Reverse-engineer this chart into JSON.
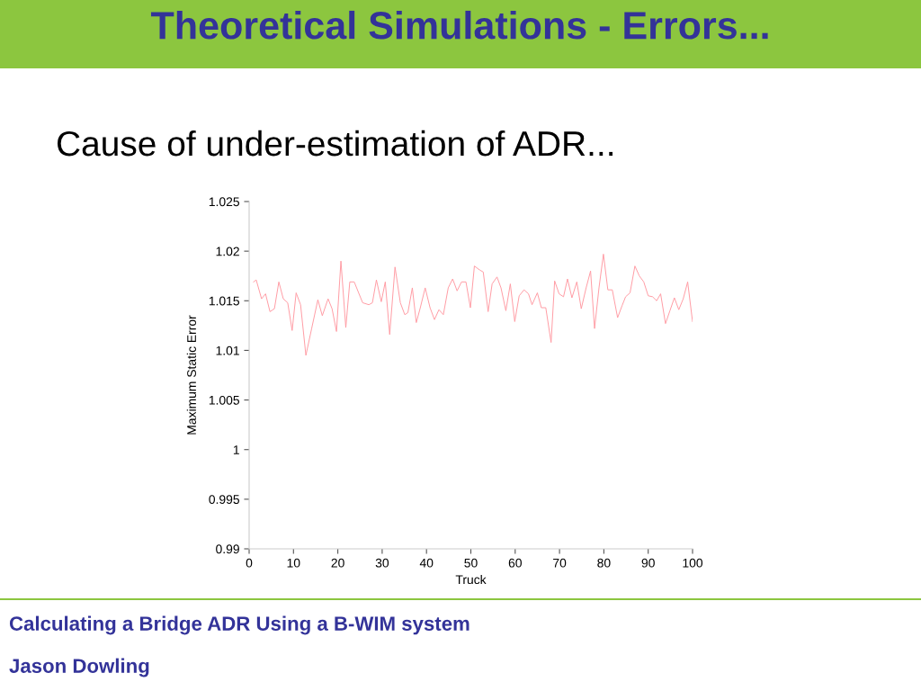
{
  "chart_data": {
    "type": "line",
    "title": "Theoretical Simulations - Errors...",
    "subtitle": "Cause of under-estimation of ADR...",
    "xlabel": "Truck",
    "ylabel": "Maximum Static Error",
    "annotations": [
      "Calculating a Bridge ADR Using a B-WIM system",
      "Jason Dowling"
    ],
    "series": [
      {
        "color": "#ff9aa2",
        "x": [
          1,
          1.6,
          2.8,
          3.7,
          4.7,
          5.7,
          6.7,
          7.7,
          8.7,
          9.7,
          10.6,
          11.6,
          12.8,
          14.1,
          15.5,
          16.5,
          17.8,
          18.7,
          19.7,
          20.7,
          21.8,
          22.7,
          23.7,
          25.6,
          27,
          27.8,
          28.7,
          29.8,
          30.7,
          31.7,
          32.9,
          34.1,
          35.1,
          35.8,
          36.8,
          37.7,
          38.6,
          39.7,
          40.8,
          41.8,
          42.8,
          43.8,
          44.9,
          45.9,
          46.9,
          47.9,
          48.9,
          49.9,
          50.8,
          52,
          52.8,
          53.9,
          54.8,
          55.9,
          56.8,
          57.9,
          58.9,
          59.9,
          60.9,
          62,
          63,
          63.8,
          65,
          65.9,
          66.9,
          68.1,
          68.9,
          69.9,
          70.9,
          71.8,
          72.8,
          73.9,
          74.9,
          76,
          77,
          77.9,
          78.9,
          79.9,
          80.9,
          81.9,
          83.1,
          84.1,
          84.9,
          85.9,
          87,
          88,
          89,
          90,
          91,
          91.9,
          92.8,
          93.9,
          94.9,
          95.9,
          96.9,
          97.9,
          98.9,
          100
        ],
        "values": [
          1.0169,
          1.0171,
          1.0152,
          1.0157,
          1.0139,
          1.0142,
          1.0169,
          1.0152,
          1.0148,
          1.012,
          1.0158,
          1.0146,
          1.0095,
          1.0122,
          1.0151,
          1.0135,
          1.0152,
          1.0142,
          1.0119,
          1.019,
          1.0123,
          1.0169,
          1.0169,
          1.0148,
          1.0146,
          1.0148,
          1.0171,
          1.0149,
          1.0169,
          1.0116,
          1.0184,
          1.0148,
          1.0136,
          1.0138,
          1.0163,
          1.0128,
          1.0143,
          1.0163,
          1.0143,
          1.0131,
          1.0141,
          1.0136,
          1.0163,
          1.0172,
          1.016,
          1.0169,
          1.0169,
          1.0143,
          1.0185,
          1.0181,
          1.0179,
          1.0139,
          1.0167,
          1.0174,
          1.0163,
          1.014,
          1.0167,
          1.0129,
          1.0155,
          1.0161,
          1.0157,
          1.0146,
          1.0158,
          1.0143,
          1.0143,
          1.0108,
          1.017,
          1.0157,
          1.0154,
          1.0172,
          1.0153,
          1.0169,
          1.0142,
          1.0163,
          1.018,
          1.0122,
          1.0163,
          1.0197,
          1.0161,
          1.0161,
          1.0133,
          1.0145,
          1.0154,
          1.0158,
          1.0185,
          1.0175,
          1.0169,
          1.0155,
          1.0154,
          1.015,
          1.0157,
          1.0127,
          1.014,
          1.0153,
          1.0141,
          1.0152,
          1.0169,
          1.0129
        ]
      }
    ],
    "xlim": [
      0,
      100
    ],
    "ylim": [
      0.99,
      1.025
    ],
    "xticks": [
      0,
      10,
      20,
      30,
      40,
      50,
      60,
      70,
      80,
      90,
      100
    ],
    "yticks": [
      0.99,
      0.995,
      1,
      1.005,
      1.01,
      1.015,
      1.02,
      1.025
    ],
    "grid": false,
    "legend": false,
    "marker": "none",
    "line_style": "solid"
  }
}
